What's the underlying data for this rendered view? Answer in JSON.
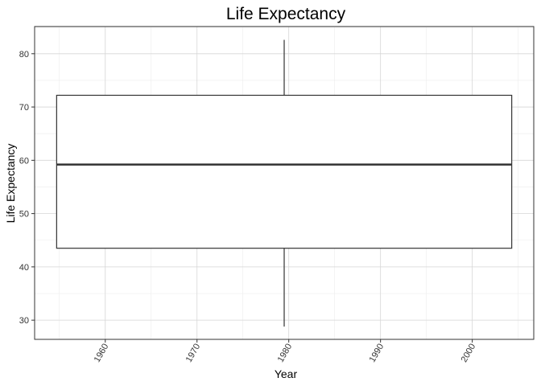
{
  "chart_data": {
    "type": "box",
    "title": "Life Expectancy",
    "xlabel": "Year",
    "ylabel": "Life Expectancy",
    "xlim": [
      1952.3,
      2006.7
    ],
    "ylim": [
      26.4,
      85.1
    ],
    "x_ticks": [
      1960,
      1970,
      1980,
      1990,
      2000
    ],
    "y_ticks": [
      30,
      40,
      50,
      60,
      70,
      80
    ],
    "x_tick_labels": [
      "1960",
      "1970",
      "1980",
      "1990",
      "2000"
    ],
    "y_tick_labels": [
      "30",
      "40",
      "50",
      "60",
      "70",
      "80"
    ],
    "x_tick_rotation": -60,
    "grid": true,
    "legend": "none",
    "box": {
      "x_center": 1979.5,
      "x_left": 1954.7,
      "x_right": 2004.3,
      "whisker_low": 28.8,
      "q1": 43.5,
      "median": 59.2,
      "q3": 72.2,
      "whisker_high": 82.6
    },
    "colors": {
      "box_fill": "#ffffff",
      "box_stroke": "#333333",
      "grid_major": "#d6d6d6",
      "grid_minor": "#ececec",
      "panel_border": "#333333"
    }
  }
}
